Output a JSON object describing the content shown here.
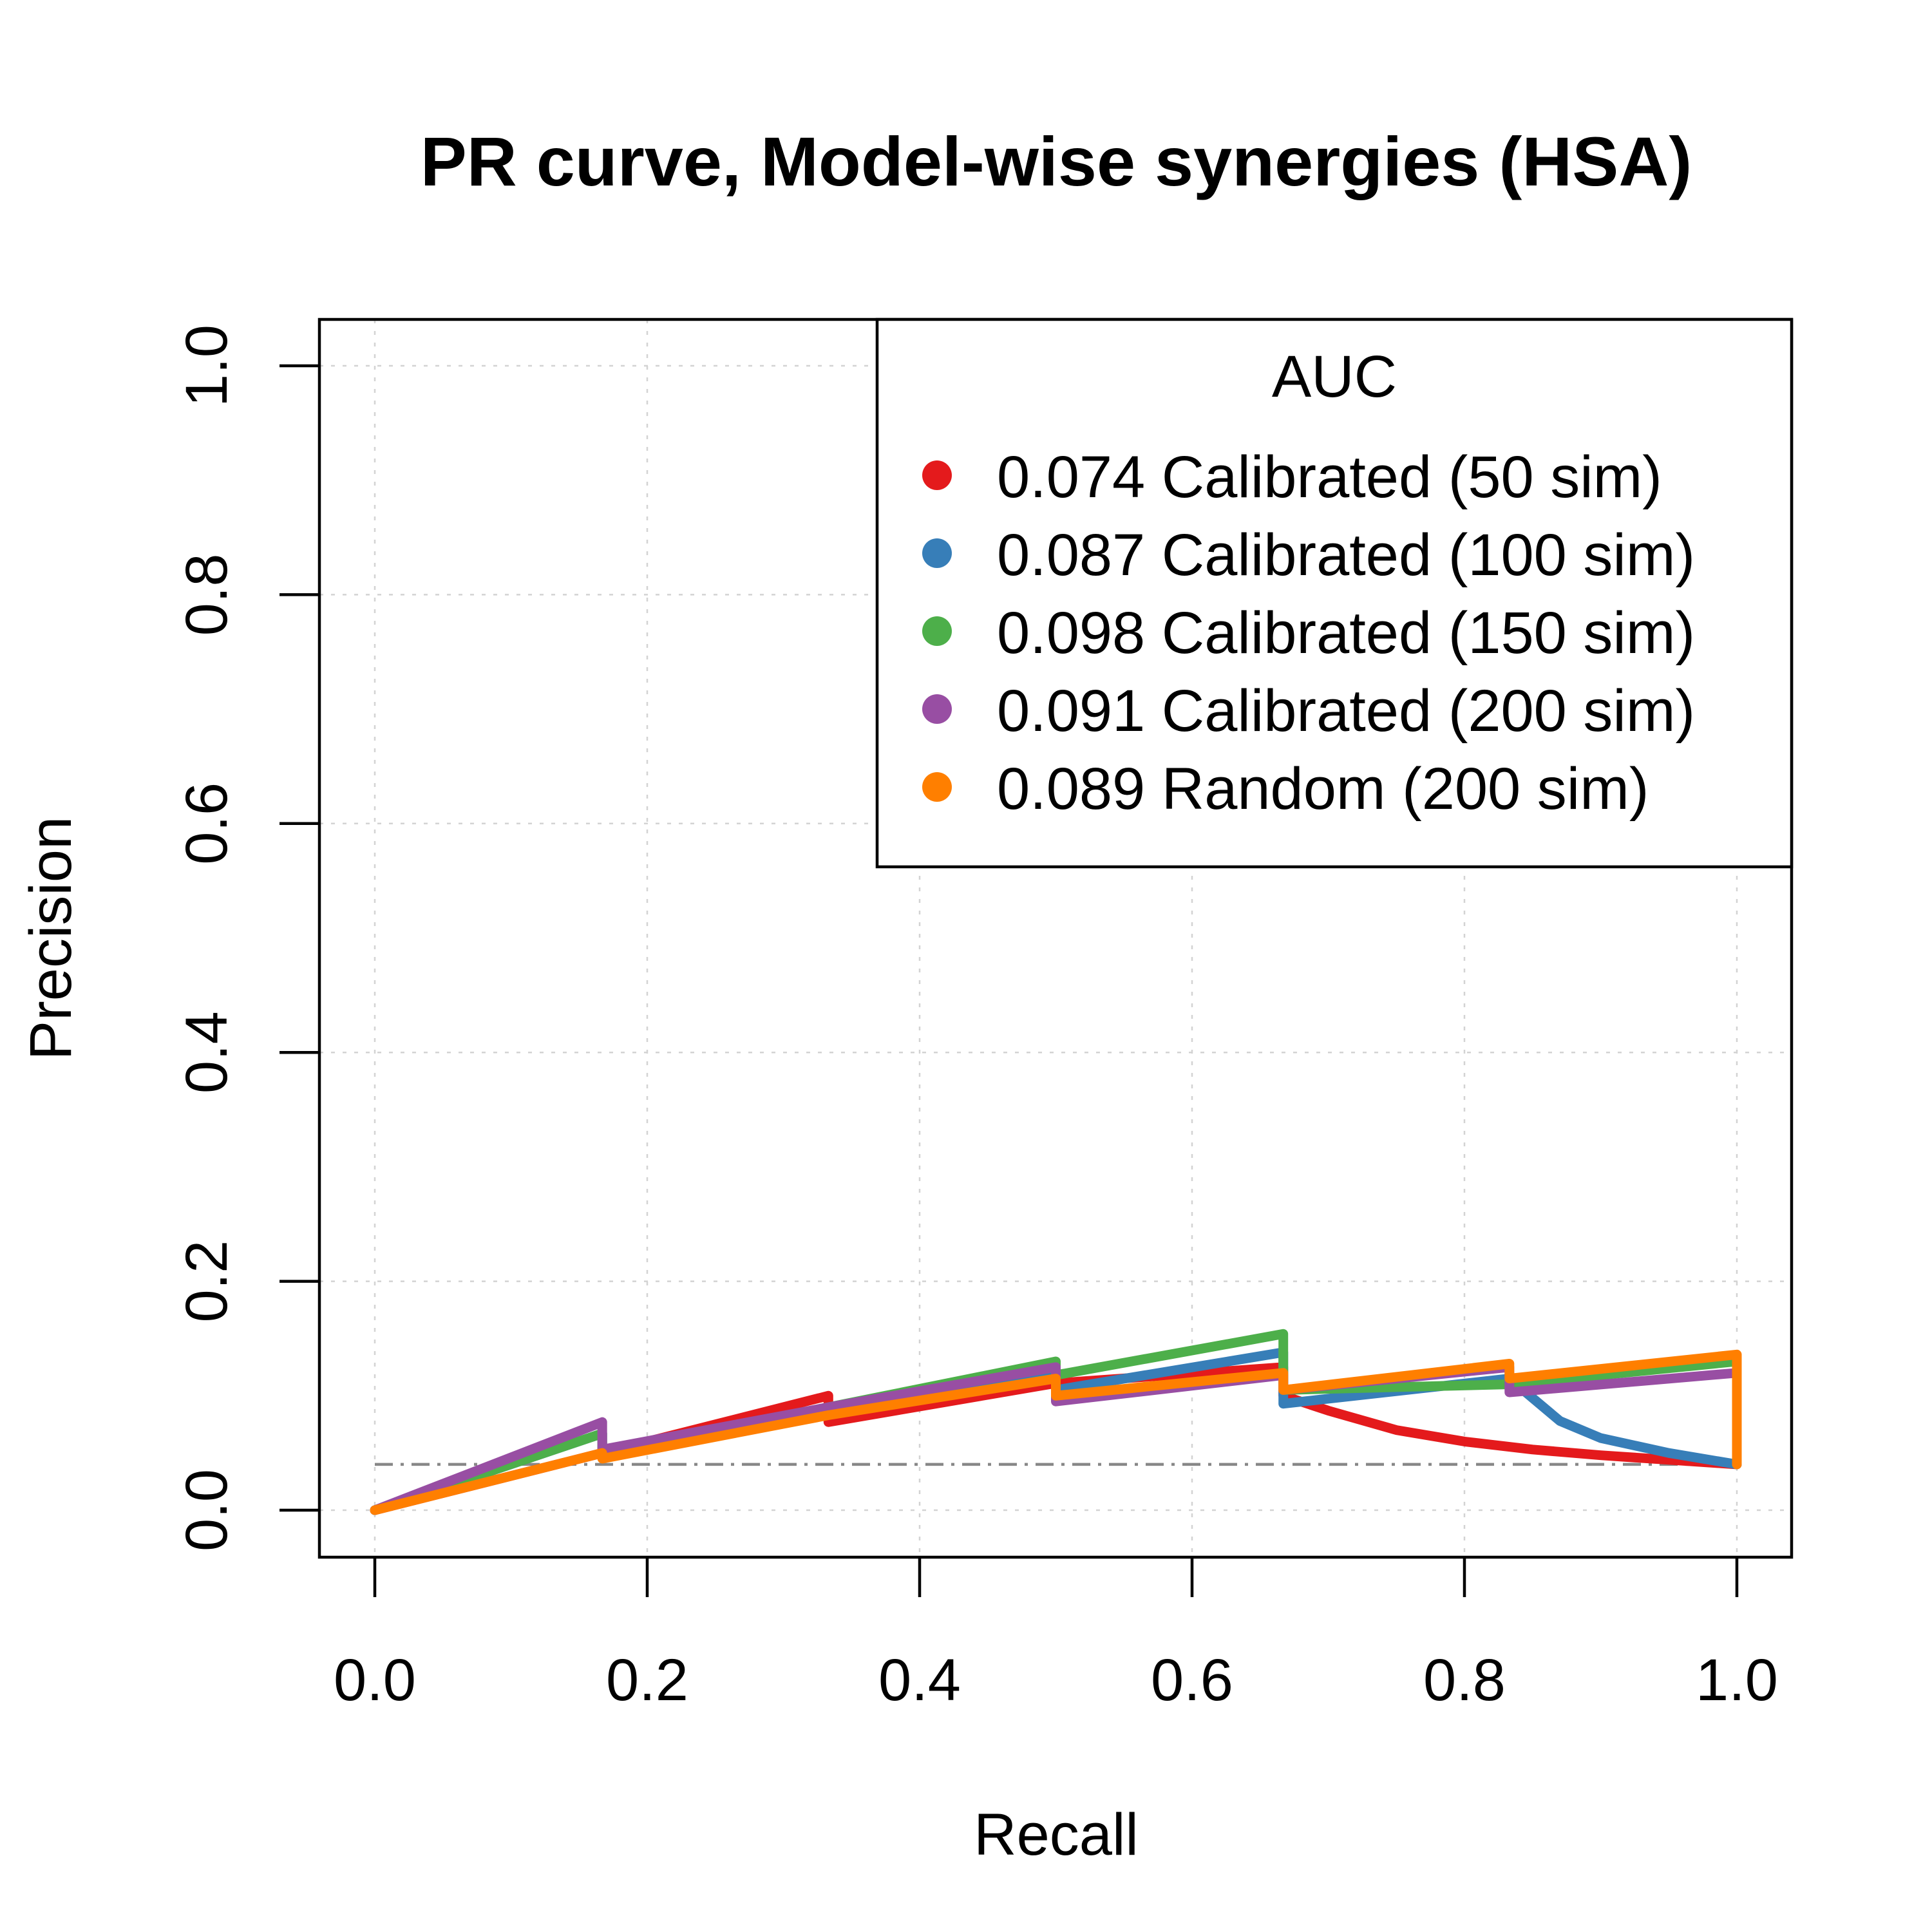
{
  "chart_data": {
    "type": "line",
    "title": "PR curve, Model-wise synergies (HSA)",
    "xlabel": "Recall",
    "ylabel": "Precision",
    "xlim": [
      0,
      1
    ],
    "ylim": [
      0,
      1
    ],
    "xticks": [
      "0.0",
      "0.2",
      "0.4",
      "0.6",
      "0.8",
      "1.0"
    ],
    "yticks": [
      "0.0",
      "0.2",
      "0.4",
      "0.6",
      "0.8",
      "1.0"
    ],
    "grid": true,
    "legend": {
      "title": "AUC",
      "position": "top-right"
    },
    "baseline": {
      "y": 0.04,
      "style": "dash-dot",
      "color": "#888888"
    },
    "series": [
      {
        "name": "0.074 Calibrated (50 sim)",
        "color": "#e41a1c",
        "points": [
          [
            0,
            0
          ],
          [
            0.167,
            0.05
          ],
          [
            0.167,
            0.05
          ],
          [
            0.333,
            0.1
          ],
          [
            0.333,
            0.077
          ],
          [
            0.5,
            0.111
          ],
          [
            0.5,
            0.111
          ],
          [
            0.667,
            0.125
          ],
          [
            0.667,
            0.1
          ],
          [
            0.7,
            0.087
          ],
          [
            0.75,
            0.07
          ],
          [
            0.8,
            0.06
          ],
          [
            0.85,
            0.053
          ],
          [
            0.9,
            0.048
          ],
          [
            0.95,
            0.044
          ],
          [
            1.0,
            0.04
          ]
        ]
      },
      {
        "name": "0.087 Calibrated (100 sim)",
        "color": "#377eb8",
        "points": [
          [
            0,
            0
          ],
          [
            0.167,
            0.067
          ],
          [
            0.167,
            0.05
          ],
          [
            0.333,
            0.086
          ],
          [
            0.5,
            0.12
          ],
          [
            0.5,
            0.105
          ],
          [
            0.667,
            0.138
          ],
          [
            0.667,
            0.093
          ],
          [
            0.833,
            0.115
          ],
          [
            0.833,
            0.115
          ],
          [
            0.87,
            0.078
          ],
          [
            0.9,
            0.063
          ],
          [
            0.95,
            0.05
          ],
          [
            1.0,
            0.04
          ]
        ]
      },
      {
        "name": "0.098 Calibrated (150 sim)",
        "color": "#4daf4a",
        "points": [
          [
            0,
            0
          ],
          [
            0.167,
            0.067
          ],
          [
            0.167,
            0.05
          ],
          [
            0.333,
            0.09
          ],
          [
            0.5,
            0.13
          ],
          [
            0.5,
            0.118
          ],
          [
            0.667,
            0.154
          ],
          [
            0.667,
            0.105
          ],
          [
            0.833,
            0.11
          ],
          [
            1.0,
            0.13
          ]
        ]
      },
      {
        "name": "0.091 Calibrated (200 sim)",
        "color": "#984ea3",
        "points": [
          [
            0,
            0
          ],
          [
            0.167,
            0.077
          ],
          [
            0.167,
            0.053
          ],
          [
            0.333,
            0.09
          ],
          [
            0.5,
            0.125
          ],
          [
            0.5,
            0.095
          ],
          [
            0.667,
            0.118
          ],
          [
            0.667,
            0.105
          ],
          [
            0.833,
            0.125
          ],
          [
            0.833,
            0.103
          ],
          [
            1.0,
            0.12
          ]
        ]
      },
      {
        "name": "0.089 Random (200 sim)",
        "color": "#ff7f00",
        "points": [
          [
            0,
            0
          ],
          [
            0.167,
            0.05
          ],
          [
            0.167,
            0.045
          ],
          [
            0.333,
            0.083
          ],
          [
            0.5,
            0.115
          ],
          [
            0.5,
            0.1
          ],
          [
            0.667,
            0.12
          ],
          [
            0.667,
            0.105
          ],
          [
            0.833,
            0.128
          ],
          [
            0.833,
            0.115
          ],
          [
            1.0,
            0.136
          ],
          [
            1.0,
            0.04
          ]
        ]
      }
    ]
  }
}
